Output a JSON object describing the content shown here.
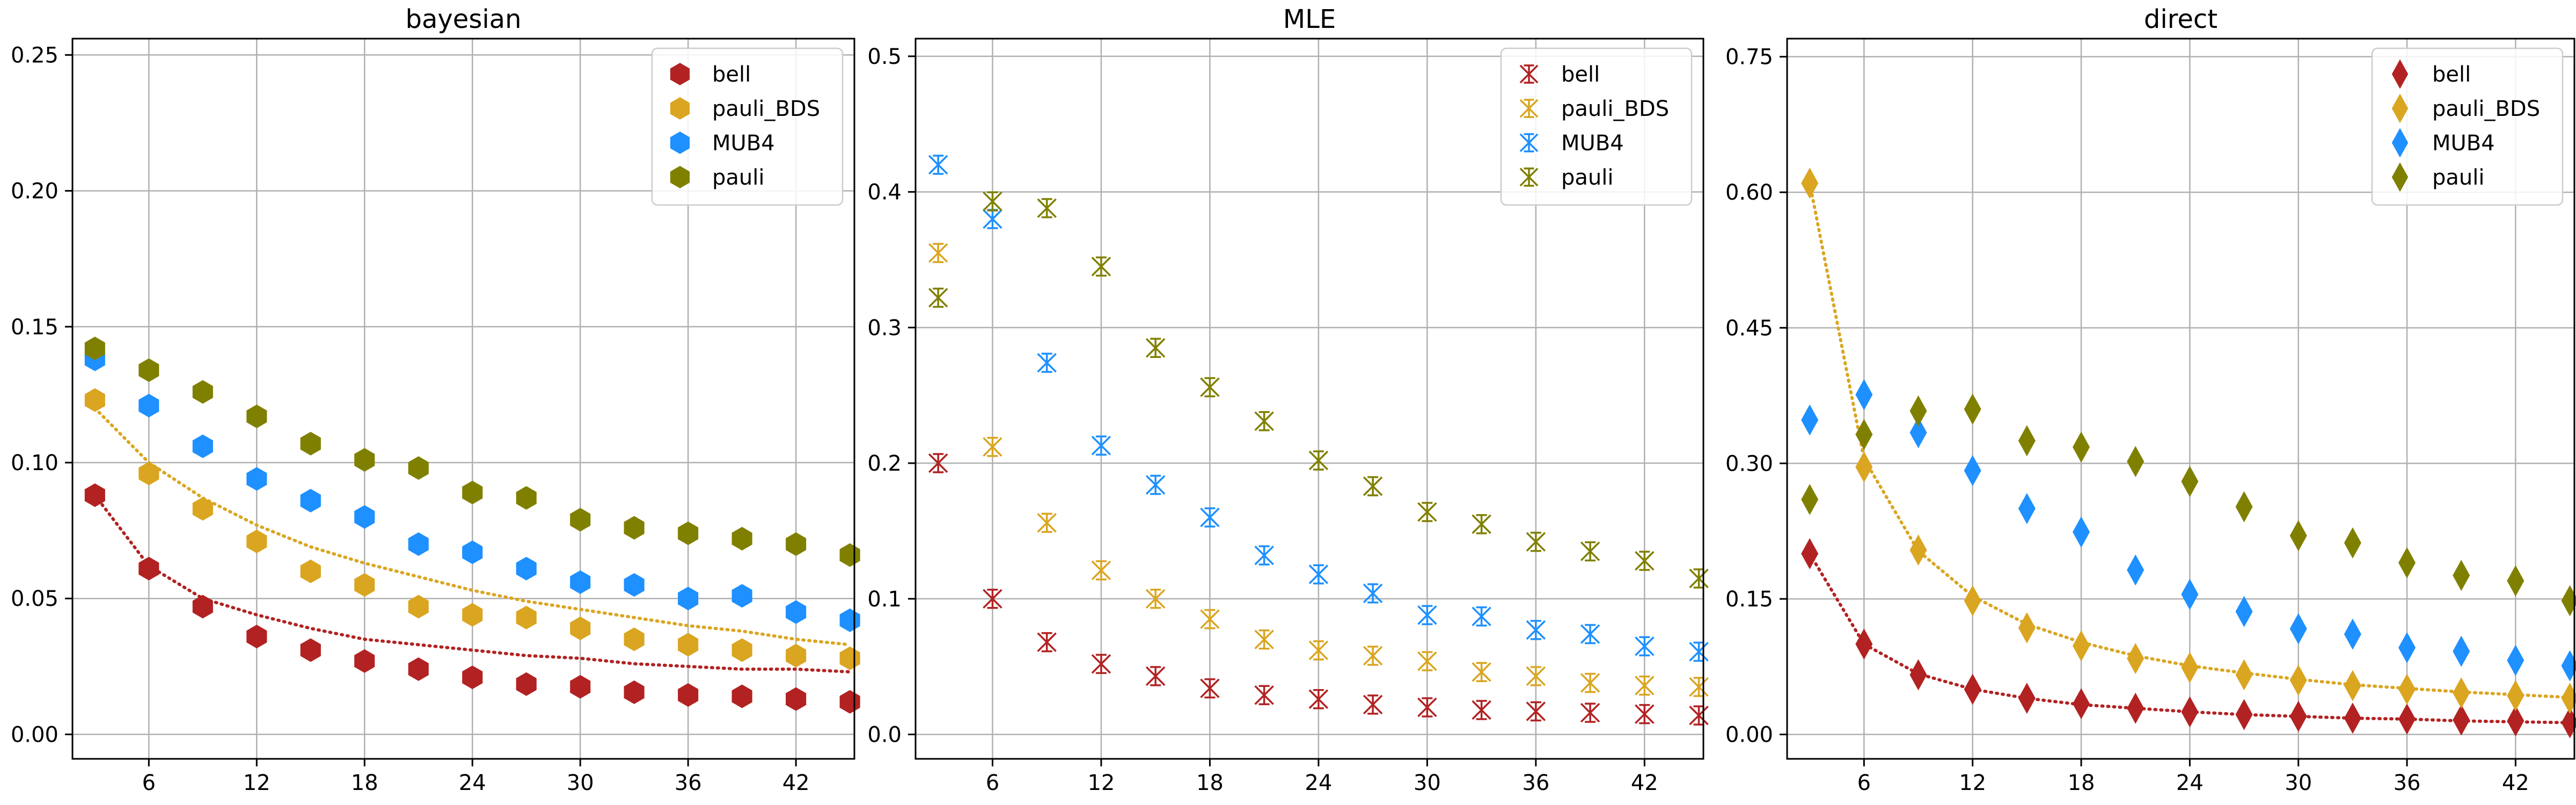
{
  "chart_data": [
    {
      "type": "scatter",
      "title": "bayesian",
      "xlabel": "",
      "ylabel": "",
      "xlim": [
        1.75,
        45.25
      ],
      "ylim": [
        -0.009,
        0.256
      ],
      "xticks": [
        6,
        12,
        18,
        24,
        30,
        36,
        42
      ],
      "xtick_labels": [
        "6",
        "12",
        "18",
        "24",
        "30",
        "36",
        "42"
      ],
      "yticks": [
        0.0,
        0.05,
        0.1,
        0.15,
        0.2,
        0.25
      ],
      "ytick_labels": [
        "0.00",
        "0.05",
        "0.10",
        "0.15",
        "0.20",
        "0.25"
      ],
      "grid": true,
      "legend_position": "top-right",
      "marker": "hexagon",
      "x": [
        3,
        6,
        9,
        12,
        15,
        18,
        21,
        24,
        27,
        30,
        33,
        36,
        39,
        42,
        45
      ],
      "series": [
        {
          "name": "bell",
          "color": "#b22222",
          "values": [
            0.088,
            0.061,
            0.047,
            0.036,
            0.031,
            0.027,
            0.024,
            0.021,
            0.0185,
            0.0175,
            0.0155,
            0.0145,
            0.014,
            0.013,
            0.012
          ]
        },
        {
          "name": "pauli_BDS",
          "color": "#daa520",
          "values": [
            0.123,
            0.096,
            0.083,
            0.071,
            0.06,
            0.055,
            0.047,
            0.044,
            0.043,
            0.039,
            0.035,
            0.033,
            0.031,
            0.029,
            0.028
          ]
        },
        {
          "name": "MUB4",
          "color": "#1e90ff",
          "values": [
            0.138,
            0.121,
            0.106,
            0.094,
            0.086,
            0.08,
            0.07,
            0.067,
            0.061,
            0.056,
            0.055,
            0.05,
            0.051,
            0.045,
            0.042
          ]
        },
        {
          "name": "pauli",
          "color": "#808000",
          "values": [
            0.142,
            0.134,
            0.126,
            0.117,
            0.107,
            0.101,
            0.098,
            0.089,
            0.087,
            0.079,
            0.076,
            0.074,
            0.072,
            0.07,
            0.066
          ]
        }
      ],
      "fits": [
        {
          "series": "bell",
          "color": "#b22222",
          "values": [
            0.088,
            0.062,
            0.05,
            0.044,
            0.039,
            0.035,
            0.033,
            0.031,
            0.029,
            0.028,
            0.026,
            0.025,
            0.024,
            0.024,
            0.023
          ]
        },
        {
          "series": "pauli_BDS",
          "color": "#daa520",
          "values": [
            0.12,
            0.1,
            0.087,
            0.077,
            0.069,
            0.063,
            0.058,
            0.053,
            0.049,
            0.046,
            0.043,
            0.04,
            0.038,
            0.035,
            0.033
          ]
        }
      ]
    },
    {
      "type": "scatter",
      "title": "MLE",
      "xlabel": "",
      "ylabel": "",
      "xlim": [
        1.75,
        45.25
      ],
      "ylim": [
        -0.018,
        0.513
      ],
      "xticks": [
        6,
        12,
        18,
        24,
        30,
        36,
        42
      ],
      "xtick_labels": [
        "6",
        "12",
        "18",
        "24",
        "30",
        "36",
        "42"
      ],
      "yticks": [
        0.0,
        0.1,
        0.2,
        0.3,
        0.4,
        0.5
      ],
      "ytick_labels": [
        "0.0",
        "0.1",
        "0.2",
        "0.3",
        "0.4",
        "0.5"
      ],
      "grid": true,
      "legend_position": "top-right",
      "marker": "x-errorbar",
      "x": [
        3,
        6,
        9,
        12,
        15,
        18,
        21,
        24,
        27,
        30,
        33,
        36,
        39,
        42,
        45
      ],
      "series": [
        {
          "name": "bell",
          "color": "#b22222",
          "values": [
            0.2,
            0.1,
            0.068,
            0.052,
            0.043,
            0.034,
            0.029,
            0.026,
            0.022,
            0.02,
            0.018,
            0.017,
            0.016,
            0.015,
            0.014
          ]
        },
        {
          "name": "pauli_BDS",
          "color": "#daa520",
          "values": [
            0.355,
            0.212,
            0.156,
            0.121,
            0.1,
            0.085,
            0.07,
            0.062,
            0.058,
            0.054,
            0.046,
            0.043,
            0.038,
            0.036,
            0.035
          ]
        },
        {
          "name": "MUB4",
          "color": "#1e90ff",
          "values": [
            0.42,
            0.38,
            0.274,
            0.213,
            0.184,
            0.16,
            0.132,
            0.118,
            0.104,
            0.088,
            0.087,
            0.077,
            0.074,
            0.065,
            0.061
          ]
        },
        {
          "name": "pauli",
          "color": "#808000",
          "values": [
            0.322,
            0.393,
            0.388,
            0.345,
            0.285,
            0.256,
            0.231,
            0.202,
            0.183,
            0.164,
            0.155,
            0.142,
            0.135,
            0.128,
            0.115
          ]
        }
      ],
      "fits": []
    },
    {
      "type": "scatter",
      "title": "direct",
      "xlabel": "",
      "ylabel": "",
      "xlim": [
        1.75,
        45.25
      ],
      "ylim": [
        -0.027,
        0.77
      ],
      "xticks": [
        6,
        12,
        18,
        24,
        30,
        36,
        42
      ],
      "xtick_labels": [
        "6",
        "12",
        "18",
        "24",
        "30",
        "36",
        "42"
      ],
      "yticks": [
        0.0,
        0.15,
        0.3,
        0.45,
        0.6,
        0.75
      ],
      "ytick_labels": [
        "0.00",
        "0.15",
        "0.30",
        "0.45",
        "0.60",
        "0.75"
      ],
      "grid": true,
      "legend_position": "top-right",
      "marker": "diamond",
      "x": [
        3,
        6,
        9,
        12,
        15,
        18,
        21,
        24,
        27,
        30,
        33,
        36,
        39,
        42,
        45
      ],
      "series": [
        {
          "name": "bell",
          "color": "#b22222",
          "values": [
            0.2,
            0.1,
            0.066,
            0.05,
            0.04,
            0.034,
            0.029,
            0.025,
            0.022,
            0.02,
            0.018,
            0.017,
            0.016,
            0.015,
            0.013
          ]
        },
        {
          "name": "pauli_BDS",
          "color": "#daa520",
          "values": [
            0.61,
            0.296,
            0.204,
            0.148,
            0.118,
            0.098,
            0.084,
            0.074,
            0.066,
            0.06,
            0.054,
            0.05,
            0.046,
            0.043,
            0.04
          ]
        },
        {
          "name": "MUB4",
          "color": "#1e90ff",
          "values": [
            0.348,
            0.376,
            0.334,
            0.292,
            0.25,
            0.224,
            0.182,
            0.155,
            0.136,
            0.117,
            0.111,
            0.096,
            0.092,
            0.082,
            0.076
          ]
        },
        {
          "name": "pauli",
          "color": "#808000",
          "values": [
            0.26,
            0.332,
            0.358,
            0.36,
            0.325,
            0.318,
            0.302,
            0.28,
            0.252,
            0.22,
            0.212,
            0.19,
            0.176,
            0.17,
            0.148
          ]
        }
      ],
      "fits": [
        {
          "series": "bell",
          "color": "#b22222",
          "values": [
            0.2,
            0.1,
            0.067,
            0.05,
            0.04,
            0.033,
            0.029,
            0.025,
            0.022,
            0.02,
            0.018,
            0.017,
            0.015,
            0.014,
            0.013
          ]
        },
        {
          "series": "pauli_BDS",
          "color": "#daa520",
          "values": [
            0.61,
            0.305,
            0.203,
            0.153,
            0.122,
            0.102,
            0.087,
            0.076,
            0.068,
            0.061,
            0.055,
            0.051,
            0.047,
            0.044,
            0.041
          ]
        }
      ]
    }
  ]
}
